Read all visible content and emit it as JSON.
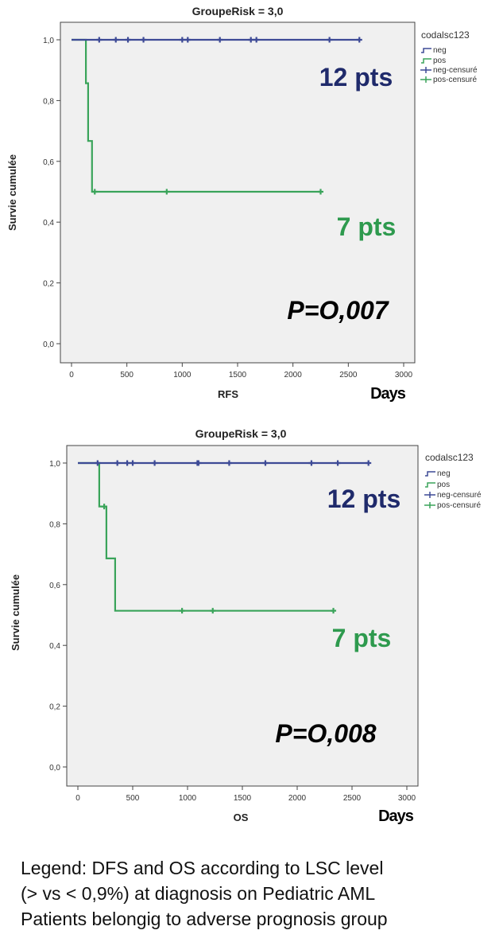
{
  "colors": {
    "neg": "#3d4a96",
    "pos": "#3aa45a",
    "plot_bg": "#f0f0f0",
    "frame": "#444444",
    "pts_neg": "#1f2a6b",
    "pts_pos": "#2e9a4e"
  },
  "chart_data": [
    {
      "type": "line",
      "title": "GroupeRisk = 3,0",
      "xlabel": "RFS",
      "ylabel": "Survie cumulée",
      "xlim": [
        0,
        3000
      ],
      "ylim": [
        0.0,
        1.0
      ],
      "x_ticks": [
        0,
        500,
        1000,
        1500,
        2000,
        2500,
        3000
      ],
      "y_ticks": [
        0.0,
        0.2,
        0.4,
        0.6,
        0.8,
        1.0
      ],
      "x_tick_labels": [
        "0",
        "500",
        "1000",
        "1500",
        "2000",
        "2500",
        "3000"
      ],
      "y_tick_labels": [
        "0,0",
        "0,2",
        "0,4",
        "0,6",
        "0,8",
        "1,0"
      ],
      "legend_title": "codalsc123",
      "legend_entries": [
        "neg",
        "pos",
        "neg-censuré",
        "pos-censuré"
      ],
      "legend_position": "right",
      "days_label": "Days",
      "series": [
        {
          "name": "neg",
          "color_key": "neg",
          "steps": [
            [
              0,
              1.0
            ],
            [
              2600,
              1.0
            ]
          ],
          "censored": [
            [
              250,
              1.0
            ],
            [
              400,
              1.0
            ],
            [
              510,
              1.0
            ],
            [
              650,
              1.0
            ],
            [
              1000,
              1.0
            ],
            [
              1050,
              1.0
            ],
            [
              1340,
              1.0
            ],
            [
              1620,
              1.0
            ],
            [
              1670,
              1.0
            ],
            [
              2330,
              1.0
            ],
            [
              2600,
              1.0
            ]
          ],
          "count_label": "12 pts"
        },
        {
          "name": "pos",
          "color_key": "pos",
          "steps": [
            [
              0,
              1.0
            ],
            [
              130,
              1.0
            ],
            [
              130,
              0.857
            ],
            [
              150,
              0.857
            ],
            [
              150,
              0.667
            ],
            [
              185,
              0.667
            ],
            [
              185,
              0.5
            ],
            [
              2250,
              0.5
            ]
          ],
          "censored": [
            [
              210,
              0.5
            ],
            [
              860,
              0.5
            ],
            [
              2250,
              0.5
            ]
          ],
          "count_label": "7 pts"
        }
      ],
      "p_value": "P=O,007"
    },
    {
      "type": "line",
      "title": "GroupeRisk = 3,0",
      "xlabel": "OS",
      "ylabel": "Survie cumulée",
      "xlim": [
        0,
        3000
      ],
      "ylim": [
        0.0,
        1.0
      ],
      "x_ticks": [
        0,
        500,
        1000,
        1500,
        2000,
        2500,
        3000
      ],
      "y_ticks": [
        0.0,
        0.2,
        0.4,
        0.6,
        0.8,
        1.0
      ],
      "x_tick_labels": [
        "0",
        "500",
        "1000",
        "1500",
        "2000",
        "2500",
        "3000"
      ],
      "y_tick_labels": [
        "0,0",
        "0,2",
        "0,4",
        "0,6",
        "0,8",
        "1,0"
      ],
      "legend_title": "codalsc123",
      "legend_entries": [
        "neg",
        "pos",
        "neg-censuré",
        "pos-censuré"
      ],
      "legend_position": "right",
      "days_label": "Days",
      "series": [
        {
          "name": "neg",
          "color_key": "neg",
          "steps": [
            [
              0,
              1.0
            ],
            [
              2650,
              1.0
            ]
          ],
          "censored": [
            [
              180,
              1.0
            ],
            [
              360,
              1.0
            ],
            [
              450,
              1.0
            ],
            [
              500,
              1.0
            ],
            [
              700,
              1.0
            ],
            [
              1090,
              1.0
            ],
            [
              1100,
              1.0
            ],
            [
              1380,
              1.0
            ],
            [
              1710,
              1.0
            ],
            [
              2130,
              1.0
            ],
            [
              2370,
              1.0
            ],
            [
              2650,
              1.0
            ]
          ],
          "count_label": "12 pts"
        },
        {
          "name": "pos",
          "color_key": "pos",
          "steps": [
            [
              0,
              1.0
            ],
            [
              195,
              1.0
            ],
            [
              195,
              0.857
            ],
            [
              260,
              0.857
            ],
            [
              260,
              0.686
            ],
            [
              340,
              0.686
            ],
            [
              340,
              0.514
            ],
            [
              2330,
              0.514
            ]
          ],
          "censored": [
            [
              240,
              0.857
            ],
            [
              950,
              0.514
            ],
            [
              1230,
              0.514
            ],
            [
              2330,
              0.514
            ]
          ],
          "count_label": "7 pts"
        }
      ],
      "p_value": "P=O,008"
    }
  ],
  "caption": [
    "Legend: DFS and OS according to LSC level",
    "(> vs < 0,9%) at diagnosis on Pediatric AML",
    "Patients belongig to  adverse prognosis group"
  ]
}
